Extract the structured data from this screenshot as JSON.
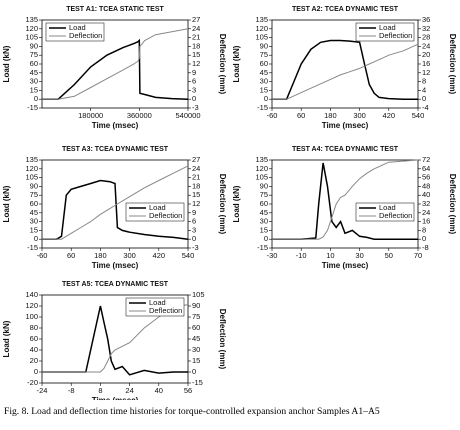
{
  "chart_data": [
    {
      "type": "line",
      "title": "TEST A1: TCEA STATIC TEST",
      "xlabel": "Time (msec)",
      "ylabel": "Load (kN)",
      "y2label": "Deflection (mm)",
      "legend": "upper left",
      "x": [
        0,
        60000,
        120000,
        180000,
        240000,
        300000,
        340000,
        355000,
        360000,
        362000,
        380000,
        420000,
        480000,
        540000
      ],
      "series": [
        {
          "name": "Load",
          "color": "#000000",
          "values": [
            0,
            0,
            25,
            55,
            75,
            88,
            95,
            98,
            100,
            10,
            8,
            3,
            1,
            0
          ]
        },
        {
          "name": "Deflection",
          "color": "#888888",
          "axis": "y2",
          "values": [
            0,
            0,
            1,
            4,
            7,
            10,
            12,
            13,
            14,
            18,
            20,
            22,
            23,
            24
          ]
        }
      ],
      "xlim": [
        0,
        540000
      ],
      "xticks": [
        180000,
        360000,
        540000
      ],
      "ylim": [
        -15,
        135
      ],
      "yticks": [
        -15,
        0,
        15,
        30,
        45,
        60,
        75,
        90,
        105,
        120,
        135
      ],
      "y2lim": [
        -3,
        27
      ],
      "y2ticks": [
        -3,
        0,
        3,
        6,
        9,
        12,
        15,
        18,
        21,
        24,
        27
      ]
    },
    {
      "type": "line",
      "title": "TEST A2: TCEA DYNAMIC TEST",
      "xlabel": "Time (msec)",
      "ylabel": "Load (kN)",
      "y2label": "Deflection (mm)",
      "legend": "upper right",
      "x": [
        -60,
        0,
        30,
        60,
        100,
        140,
        180,
        220,
        260,
        300,
        320,
        340,
        360,
        380,
        420,
        480,
        540
      ],
      "series": [
        {
          "name": "Load",
          "color": "#000000",
          "values": [
            0,
            0,
            30,
            60,
            85,
            97,
            100,
            100,
            99,
            97,
            60,
            25,
            10,
            3,
            1,
            0,
            0
          ]
        },
        {
          "name": "Deflection",
          "color": "#888888",
          "axis": "y2",
          "values": [
            0,
            0,
            1.5,
            3,
            5,
            7,
            9,
            11,
            12.5,
            14,
            15,
            16,
            17,
            18,
            20,
            22,
            25
          ]
        }
      ],
      "xlim": [
        -60,
        540
      ],
      "xticks": [
        -60,
        60,
        180,
        300,
        420,
        540
      ],
      "ylim": [
        -15,
        135
      ],
      "yticks": [
        -15,
        0,
        15,
        30,
        45,
        60,
        75,
        90,
        105,
        120,
        135
      ],
      "y2lim": [
        -4,
        36
      ],
      "y2ticks": [
        -4,
        0,
        4,
        8,
        12,
        16,
        20,
        24,
        28,
        32,
        36
      ]
    },
    {
      "type": "line",
      "title": "TEST A3: TCEA DYNAMIC TEST",
      "xlabel": "Time (msec)",
      "ylabel": "Load (kN)",
      "y2label": "Deflection (mm)",
      "legend": "center right",
      "x": [
        -60,
        0,
        20,
        40,
        60,
        100,
        140,
        180,
        220,
        240,
        250,
        270,
        300,
        360,
        420,
        480,
        540
      ],
      "series": [
        {
          "name": "Load",
          "color": "#000000",
          "values": [
            0,
            0,
            5,
            75,
            85,
            90,
            95,
            100,
            98,
            95,
            20,
            15,
            12,
            8,
            5,
            3,
            0
          ]
        },
        {
          "name": "Deflection",
          "color": "#888888",
          "axis": "y2",
          "values": [
            0,
            0,
            0,
            1,
            2,
            4,
            6,
            8.5,
            10.5,
            11.5,
            12,
            13,
            14.5,
            17.5,
            20,
            22.5,
            25
          ]
        }
      ],
      "xlim": [
        -60,
        540
      ],
      "xticks": [
        -60,
        60,
        180,
        300,
        420,
        540
      ],
      "ylim": [
        -15,
        135
      ],
      "yticks": [
        -15,
        0,
        15,
        30,
        45,
        60,
        75,
        90,
        105,
        120,
        135
      ],
      "y2lim": [
        -3,
        27
      ],
      "y2ticks": [
        -3,
        0,
        3,
        6,
        9,
        12,
        15,
        18,
        21,
        24,
        27
      ]
    },
    {
      "type": "line",
      "title": "TEST A4: TCEA DYNAMIC TEST",
      "xlabel": "Time (msec)",
      "ylabel": "Load (kN)",
      "y2label": "Deflection (mm)",
      "legend": "center right",
      "x": [
        -30,
        -10,
        0,
        2,
        5,
        8,
        11,
        14,
        17,
        20,
        25,
        30,
        35,
        40,
        50,
        70
      ],
      "series": [
        {
          "name": "Load",
          "color": "#000000",
          "values": [
            0,
            0,
            2,
            60,
            130,
            90,
            30,
            20,
            30,
            10,
            15,
            5,
            3,
            0,
            0,
            0
          ]
        },
        {
          "name": "Deflection",
          "color": "#888888",
          "axis": "y2",
          "values": [
            0,
            0,
            0,
            0,
            2,
            8,
            20,
            32,
            38,
            40,
            48,
            55,
            60,
            64,
            70,
            72
          ]
        }
      ],
      "xlim": [
        -30,
        70
      ],
      "xticks": [
        -30,
        -10,
        10,
        30,
        50,
        70
      ],
      "ylim": [
        -15,
        135
      ],
      "yticks": [
        -15,
        0,
        15,
        30,
        45,
        60,
        75,
        90,
        105,
        120,
        135
      ],
      "y2lim": [
        -8,
        72
      ],
      "y2ticks": [
        -8,
        0,
        8,
        16,
        24,
        32,
        40,
        48,
        56,
        64,
        72
      ]
    },
    {
      "type": "line",
      "title": "TEST A5: TCEA DYNAMIC TEST",
      "xlabel": "Time (msec)",
      "ylabel": "Load (kN)",
      "y2label": "Deflection (mm)",
      "legend": "upper right",
      "x": [
        -24,
        -8,
        0,
        4,
        8,
        10,
        12,
        14,
        16,
        20,
        24,
        32,
        40,
        48,
        56
      ],
      "series": [
        {
          "name": "Load",
          "color": "#000000",
          "values": [
            0,
            0,
            0,
            60,
            120,
            90,
            60,
            20,
            5,
            10,
            -5,
            3,
            -2,
            0,
            0
          ]
        },
        {
          "name": "Deflection",
          "color": "#888888",
          "axis": "y2",
          "values": [
            0,
            0,
            0,
            0,
            0,
            5,
            15,
            25,
            30,
            35,
            40,
            60,
            75,
            88,
            92
          ]
        }
      ],
      "xlim": [
        -24,
        56
      ],
      "xticks": [
        -24,
        -8,
        8,
        24,
        40,
        56
      ],
      "ylim": [
        -20,
        140
      ],
      "yticks": [
        -20,
        0,
        20,
        40,
        60,
        80,
        100,
        120,
        140
      ],
      "y2lim": [
        -15,
        105
      ],
      "y2ticks": [
        -15,
        0,
        15,
        30,
        45,
        60,
        75,
        90,
        105
      ]
    }
  ],
  "caption": "Fig. 8. Load and deflection time histories for torque-controlled expansion anchor Samples A1–A5"
}
